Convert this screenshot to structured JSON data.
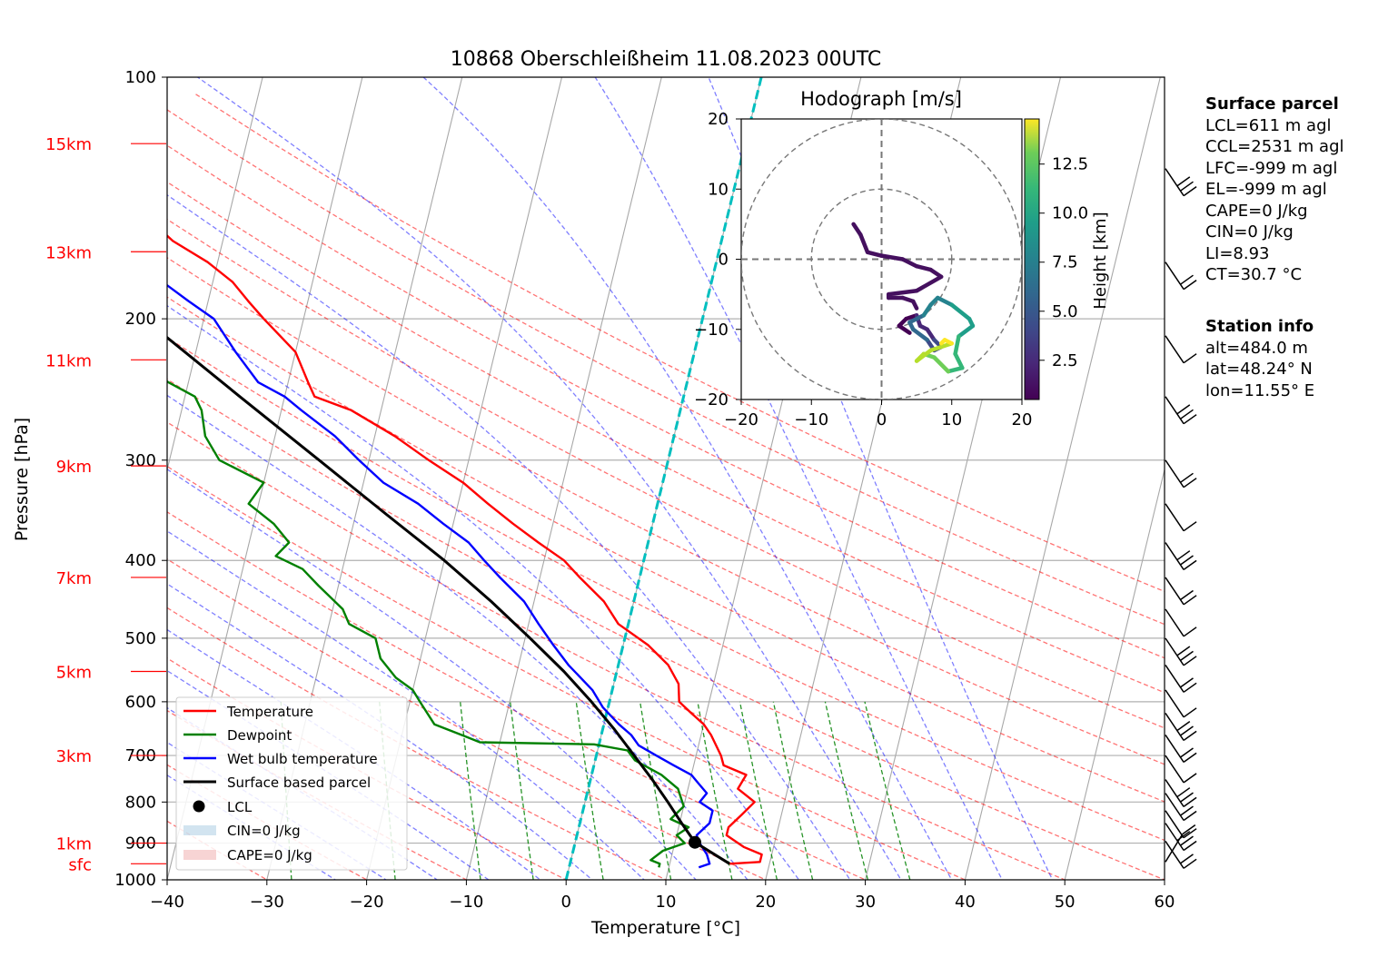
{
  "title": "10868 Oberschleißheim 11.08.2023 00UTC",
  "axes": {
    "xlabel": "Temperature [°C]",
    "ylabel": "Pressure [hPa]",
    "x_ticks": [
      "−40",
      "−30",
      "−20",
      "−10",
      "0",
      "10",
      "20",
      "30",
      "40",
      "50",
      "60"
    ],
    "p_ticks": [
      "100",
      "200",
      "300",
      "400",
      "500",
      "600",
      "700",
      "800",
      "900",
      "1000"
    ]
  },
  "height_labels": [
    "15km",
    "13km",
    "11km",
    "9km",
    "7km",
    "5km",
    "3km",
    "1km",
    "sfc"
  ],
  "legend": {
    "temperature": "Temperature",
    "dewpoint": "Dewpoint",
    "wetbulb": "Wet bulb temperature",
    "parcel": "Surface based parcel",
    "lcl": "LCL",
    "cin": "CIN=0 J/kg",
    "cape": "CAPE=0 J/kg"
  },
  "hodograph": {
    "title": "Hodograph [m/s]",
    "ticks": [
      "−20",
      "−10",
      "0",
      "10",
      "20"
    ],
    "colorbar_label": "Height [km]",
    "colorbar_ticks": [
      "12.5",
      "10.0",
      "7.5",
      "5.0",
      "2.5"
    ]
  },
  "surface_parcel": {
    "heading": "Surface parcel",
    "lines": [
      "LCL=611 m agl",
      "CCL=2531 m agl",
      "LFC=-999 m agl",
      "EL=-999 m agl",
      "CAPE=0 J/kg",
      "CIN=0 J/kg",
      "LI=8.93",
      "CT=30.7 °C"
    ]
  },
  "station_info": {
    "heading": "Station info",
    "lines": [
      "alt=484.0 m",
      "lat=48.24° N",
      "lon=11.55° E"
    ]
  },
  "colors": {
    "temperature": "#ff0000",
    "dewpoint": "#008000",
    "wetbulb": "#0000ff",
    "parcel": "#000000",
    "height_labels": "#ff0000",
    "cyan_line": "#00bfbf",
    "dry_adiabats": "#ff0000",
    "moist_adiabats": "#0000ff",
    "mixing_ratio": "#008000"
  },
  "chart_data": {
    "type": "line",
    "title": "10868 Oberschleißheim 11.08.2023 00UTC",
    "xlabel": "Temperature [°C]",
    "ylabel": "Pressure [hPa]",
    "xlim": [
      -40,
      60
    ],
    "ylim": [
      1000,
      100
    ],
    "y_scale": "log",
    "skew": true,
    "series": [
      {
        "name": "Temperature",
        "color": "#ff0000",
        "points": [
          [
            955,
            16
          ],
          [
            950,
            19
          ],
          [
            930,
            19
          ],
          [
            910,
            17
          ],
          [
            880,
            15
          ],
          [
            860,
            15
          ],
          [
            830,
            16
          ],
          [
            800,
            17
          ],
          [
            770,
            15
          ],
          [
            740,
            15.5
          ],
          [
            720,
            13
          ],
          [
            700,
            12.5
          ],
          [
            660,
            11
          ],
          [
            640,
            10
          ],
          [
            620,
            8.5
          ],
          [
            600,
            7
          ],
          [
            570,
            6.5
          ],
          [
            540,
            5
          ],
          [
            510,
            2.5
          ],
          [
            480,
            -1
          ],
          [
            450,
            -3
          ],
          [
            420,
            -6
          ],
          [
            400,
            -8
          ],
          [
            380,
            -11
          ],
          [
            360,
            -14
          ],
          [
            340,
            -17
          ],
          [
            320,
            -20
          ],
          [
            300,
            -24
          ],
          [
            280,
            -28
          ],
          [
            260,
            -33
          ],
          [
            250,
            -37
          ],
          [
            240,
            -38
          ],
          [
            220,
            -40
          ],
          [
            200,
            -44
          ],
          [
            190,
            -46
          ],
          [
            180,
            -48
          ],
          [
            170,
            -51
          ],
          [
            160,
            -55
          ],
          [
            150,
            -58
          ],
          [
            140,
            -61
          ],
          [
            130,
            -64
          ],
          [
            122,
            -65
          ]
        ]
      },
      {
        "name": "Dewpoint",
        "color": "#008000",
        "points": [
          [
            965,
            9
          ],
          [
            955,
            9
          ],
          [
            945,
            8
          ],
          [
            920,
            9
          ],
          [
            900,
            11
          ],
          [
            880,
            10
          ],
          [
            860,
            11
          ],
          [
            840,
            9
          ],
          [
            810,
            10
          ],
          [
            770,
            9
          ],
          [
            740,
            7
          ],
          [
            710,
            4
          ],
          [
            690,
            3
          ],
          [
            678,
            -0.5
          ],
          [
            674,
            -12
          ],
          [
            660,
            -14
          ],
          [
            640,
            -17
          ],
          [
            600,
            -19
          ],
          [
            580,
            -20
          ],
          [
            560,
            -22
          ],
          [
            530,
            -24
          ],
          [
            500,
            -25
          ],
          [
            480,
            -28
          ],
          [
            460,
            -29
          ],
          [
            430,
            -32
          ],
          [
            410,
            -34
          ],
          [
            395,
            -37
          ],
          [
            380,
            -36
          ],
          [
            360,
            -38
          ],
          [
            340,
            -41
          ],
          [
            320,
            -40
          ],
          [
            300,
            -45
          ],
          [
            280,
            -47
          ],
          [
            260,
            -48
          ],
          [
            250,
            -49
          ],
          [
            240,
            -52
          ],
          [
            220,
            -57
          ],
          [
            200,
            -64
          ],
          [
            190,
            -65
          ],
          [
            180,
            -63
          ],
          [
            170,
            -62
          ],
          [
            160,
            -64
          ],
          [
            150,
            -63
          ],
          [
            140,
            -65
          ],
          [
            130,
            -67
          ],
          [
            123,
            -64
          ]
        ]
      },
      {
        "name": "Wet bulb temperature",
        "color": "#0000ff",
        "points": [
          [
            965,
            13
          ],
          [
            955,
            14
          ],
          [
            930,
            13.5
          ],
          [
            900,
            12.5
          ],
          [
            880,
            12
          ],
          [
            850,
            13
          ],
          [
            820,
            13
          ],
          [
            800,
            11.5
          ],
          [
            780,
            12
          ],
          [
            760,
            11
          ],
          [
            740,
            10
          ],
          [
            720,
            8
          ],
          [
            700,
            6
          ],
          [
            680,
            4
          ],
          [
            660,
            3
          ],
          [
            640,
            1.5
          ],
          [
            610,
            -0.5
          ],
          [
            580,
            -2
          ],
          [
            540,
            -5
          ],
          [
            510,
            -7
          ],
          [
            480,
            -9
          ],
          [
            450,
            -11
          ],
          [
            420,
            -14
          ],
          [
            400,
            -16
          ],
          [
            380,
            -18
          ],
          [
            360,
            -21
          ],
          [
            340,
            -24
          ],
          [
            320,
            -28
          ],
          [
            300,
            -31
          ],
          [
            280,
            -34
          ],
          [
            260,
            -38
          ],
          [
            250,
            -40
          ],
          [
            240,
            -43
          ],
          [
            220,
            -46
          ],
          [
            200,
            -49
          ],
          [
            190,
            -52
          ],
          [
            180,
            -55
          ],
          [
            170,
            -57
          ],
          [
            160,
            -60
          ],
          [
            150,
            -62
          ],
          [
            140,
            -64
          ],
          [
            130,
            -66
          ],
          [
            122,
            -65
          ]
        ]
      },
      {
        "name": "Surface based parcel",
        "color": "#000000",
        "points": [
          [
            955,
            16
          ],
          [
            898,
            12
          ],
          [
            850,
            10.2
          ],
          [
            800,
            8.3
          ],
          [
            750,
            6.2
          ],
          [
            700,
            3.8
          ],
          [
            650,
            1.2
          ],
          [
            600,
            -1.8
          ],
          [
            550,
            -5.3
          ],
          [
            500,
            -9.5
          ],
          [
            450,
            -14.3
          ],
          [
            400,
            -20
          ],
          [
            350,
            -27
          ],
          [
            300,
            -35
          ],
          [
            250,
            -44.5
          ],
          [
            200,
            -56
          ],
          [
            150,
            -70
          ],
          [
            125,
            -78
          ]
        ]
      }
    ],
    "lcl": {
      "p": 898,
      "t": 12
    },
    "height_labels": [
      {
        "label": "15km",
        "p": 121
      },
      {
        "label": "13km",
        "p": 165
      },
      {
        "label": "11km",
        "p": 225
      },
      {
        "label": "9km",
        "p": 305
      },
      {
        "label": "7km",
        "p": 420
      },
      {
        "label": "5km",
        "p": 550
      },
      {
        "label": "3km",
        "p": 700
      },
      {
        "label": "1km",
        "p": 900
      },
      {
        "label": "sfc",
        "p": 955
      }
    ],
    "hodograph": {
      "xlim": [
        -20,
        20
      ],
      "ylim": [
        -20,
        20
      ],
      "rings": [
        10,
        20
      ],
      "colorbar_range_km": [
        0.5,
        14.8
      ],
      "points": [
        [
          4,
          -10.5,
          0.5
        ],
        [
          2.5,
          -9.5,
          1
        ],
        [
          3.5,
          -8.5,
          1.5
        ],
        [
          5,
          -8,
          2
        ],
        [
          5.5,
          -9.5,
          2.5
        ],
        [
          6.5,
          -10,
          3
        ],
        [
          7.5,
          -11.5,
          3.5
        ],
        [
          8.5,
          -12.5,
          4
        ],
        [
          7.5,
          -13,
          4.5
        ],
        [
          6.5,
          -11.5,
          5
        ],
        [
          4.5,
          -10,
          5.5
        ],
        [
          4,
          -9,
          6
        ],
        [
          6,
          -8,
          6.5
        ],
        [
          7,
          -6.5,
          7
        ],
        [
          8,
          -5.5,
          7.5
        ],
        [
          10,
          -6.5,
          8
        ],
        [
          12.5,
          -8.5,
          8.5
        ],
        [
          13,
          -9.5,
          9
        ],
        [
          11,
          -11,
          9.5
        ],
        [
          10.5,
          -13.5,
          10
        ],
        [
          11.5,
          -15.5,
          10.5
        ],
        [
          9.5,
          -16,
          11
        ],
        [
          7.5,
          -14,
          11.5
        ],
        [
          6,
          -13.5,
          12
        ],
        [
          5,
          -14.5,
          12.5
        ],
        [
          7,
          -13,
          13
        ],
        [
          10,
          -12,
          13.5
        ],
        [
          9,
          -11.5,
          14
        ],
        [
          8.5,
          -12,
          14.5
        ]
      ],
      "lower_points": [
        [
          -4,
          5
        ],
        [
          -3,
          3.5
        ],
        [
          -2,
          1
        ],
        [
          0,
          0.5
        ],
        [
          3,
          0
        ],
        [
          5,
          -1
        ],
        [
          7,
          -1.5
        ],
        [
          8.5,
          -2.5
        ],
        [
          5,
          -4.5
        ],
        [
          1,
          -5
        ],
        [
          1,
          -5.5
        ],
        [
          3,
          -5.5
        ],
        [
          4.5,
          -6
        ],
        [
          5,
          -7
        ]
      ]
    },
    "wind_barbs_p": [
      950,
      895,
      850,
      820,
      780,
      750,
      700,
      660,
      620,
      580,
      540,
      500,
      460,
      420,
      380,
      340,
      300,
      250,
      210,
      170,
      130
    ]
  }
}
